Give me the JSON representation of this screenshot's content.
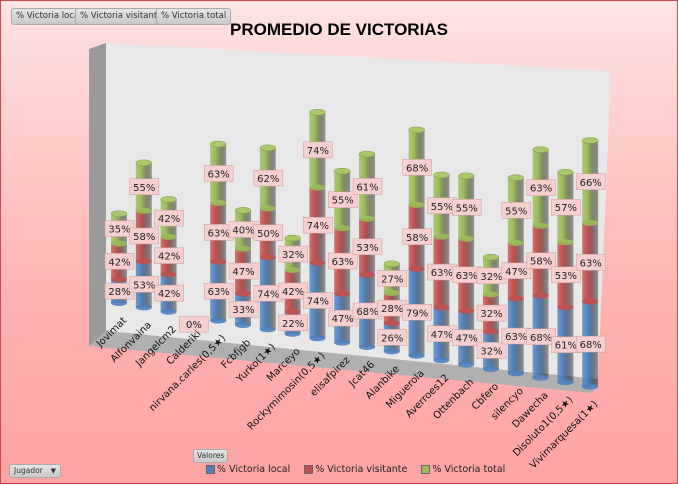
{
  "field_buttons": [
    "% Victoria local",
    "% Victoria visitante",
    "% Victoria total"
  ],
  "row_field": {
    "label": "Jugador"
  },
  "values_button": "Valores",
  "colors": {
    "local": "#4f81bd",
    "visitante": "#c0504d",
    "total": "#9bbb59"
  },
  "chart_data": {
    "type": "bar",
    "subtype": "3d-stacked-cylinder",
    "title": "PROMEDIO DE VICTORIAS",
    "categories": [
      "Jovimat",
      "Alfonvaina",
      "Jangelcm2",
      "Calderiki",
      "nirvana.carles(0,5★)",
      "Fcbfjgb",
      "Yurko(1★)",
      "Marceyo",
      "Rockymimosin(0,5★)",
      "elisafpirez",
      "Jcat46",
      "Alanbike",
      "Miguerola",
      "Averroes12",
      "Ottenbach",
      "Cbfero",
      "silencyo",
      "Dawecha",
      "Disoluto1(0,5★)",
      "Vivimarquesa(1★)"
    ],
    "series": [
      {
        "name": "% Victoria local",
        "values": [
          28,
          53,
          42,
          0,
          63,
          33,
          74,
          22,
          74,
          47,
          68,
          26,
          79,
          47,
          47,
          32,
          63,
          68,
          61,
          68
        ]
      },
      {
        "name": "% Victoria visitante",
        "values": [
          42,
          58,
          42,
          0,
          63,
          47,
          50,
          42,
          74,
          63,
          53,
          28,
          58,
          63,
          63,
          32,
          47,
          58,
          53,
          63
        ]
      },
      {
        "name": "% Victoria total",
        "values": [
          35,
          55,
          42,
          0,
          63,
          40,
          62,
          32,
          74,
          55,
          61,
          27,
          68,
          55,
          55,
          32,
          55,
          63,
          57,
          66
        ]
      }
    ],
    "value_format": "%",
    "legend": "bottom",
    "xlabel": "",
    "ylabel": ""
  }
}
